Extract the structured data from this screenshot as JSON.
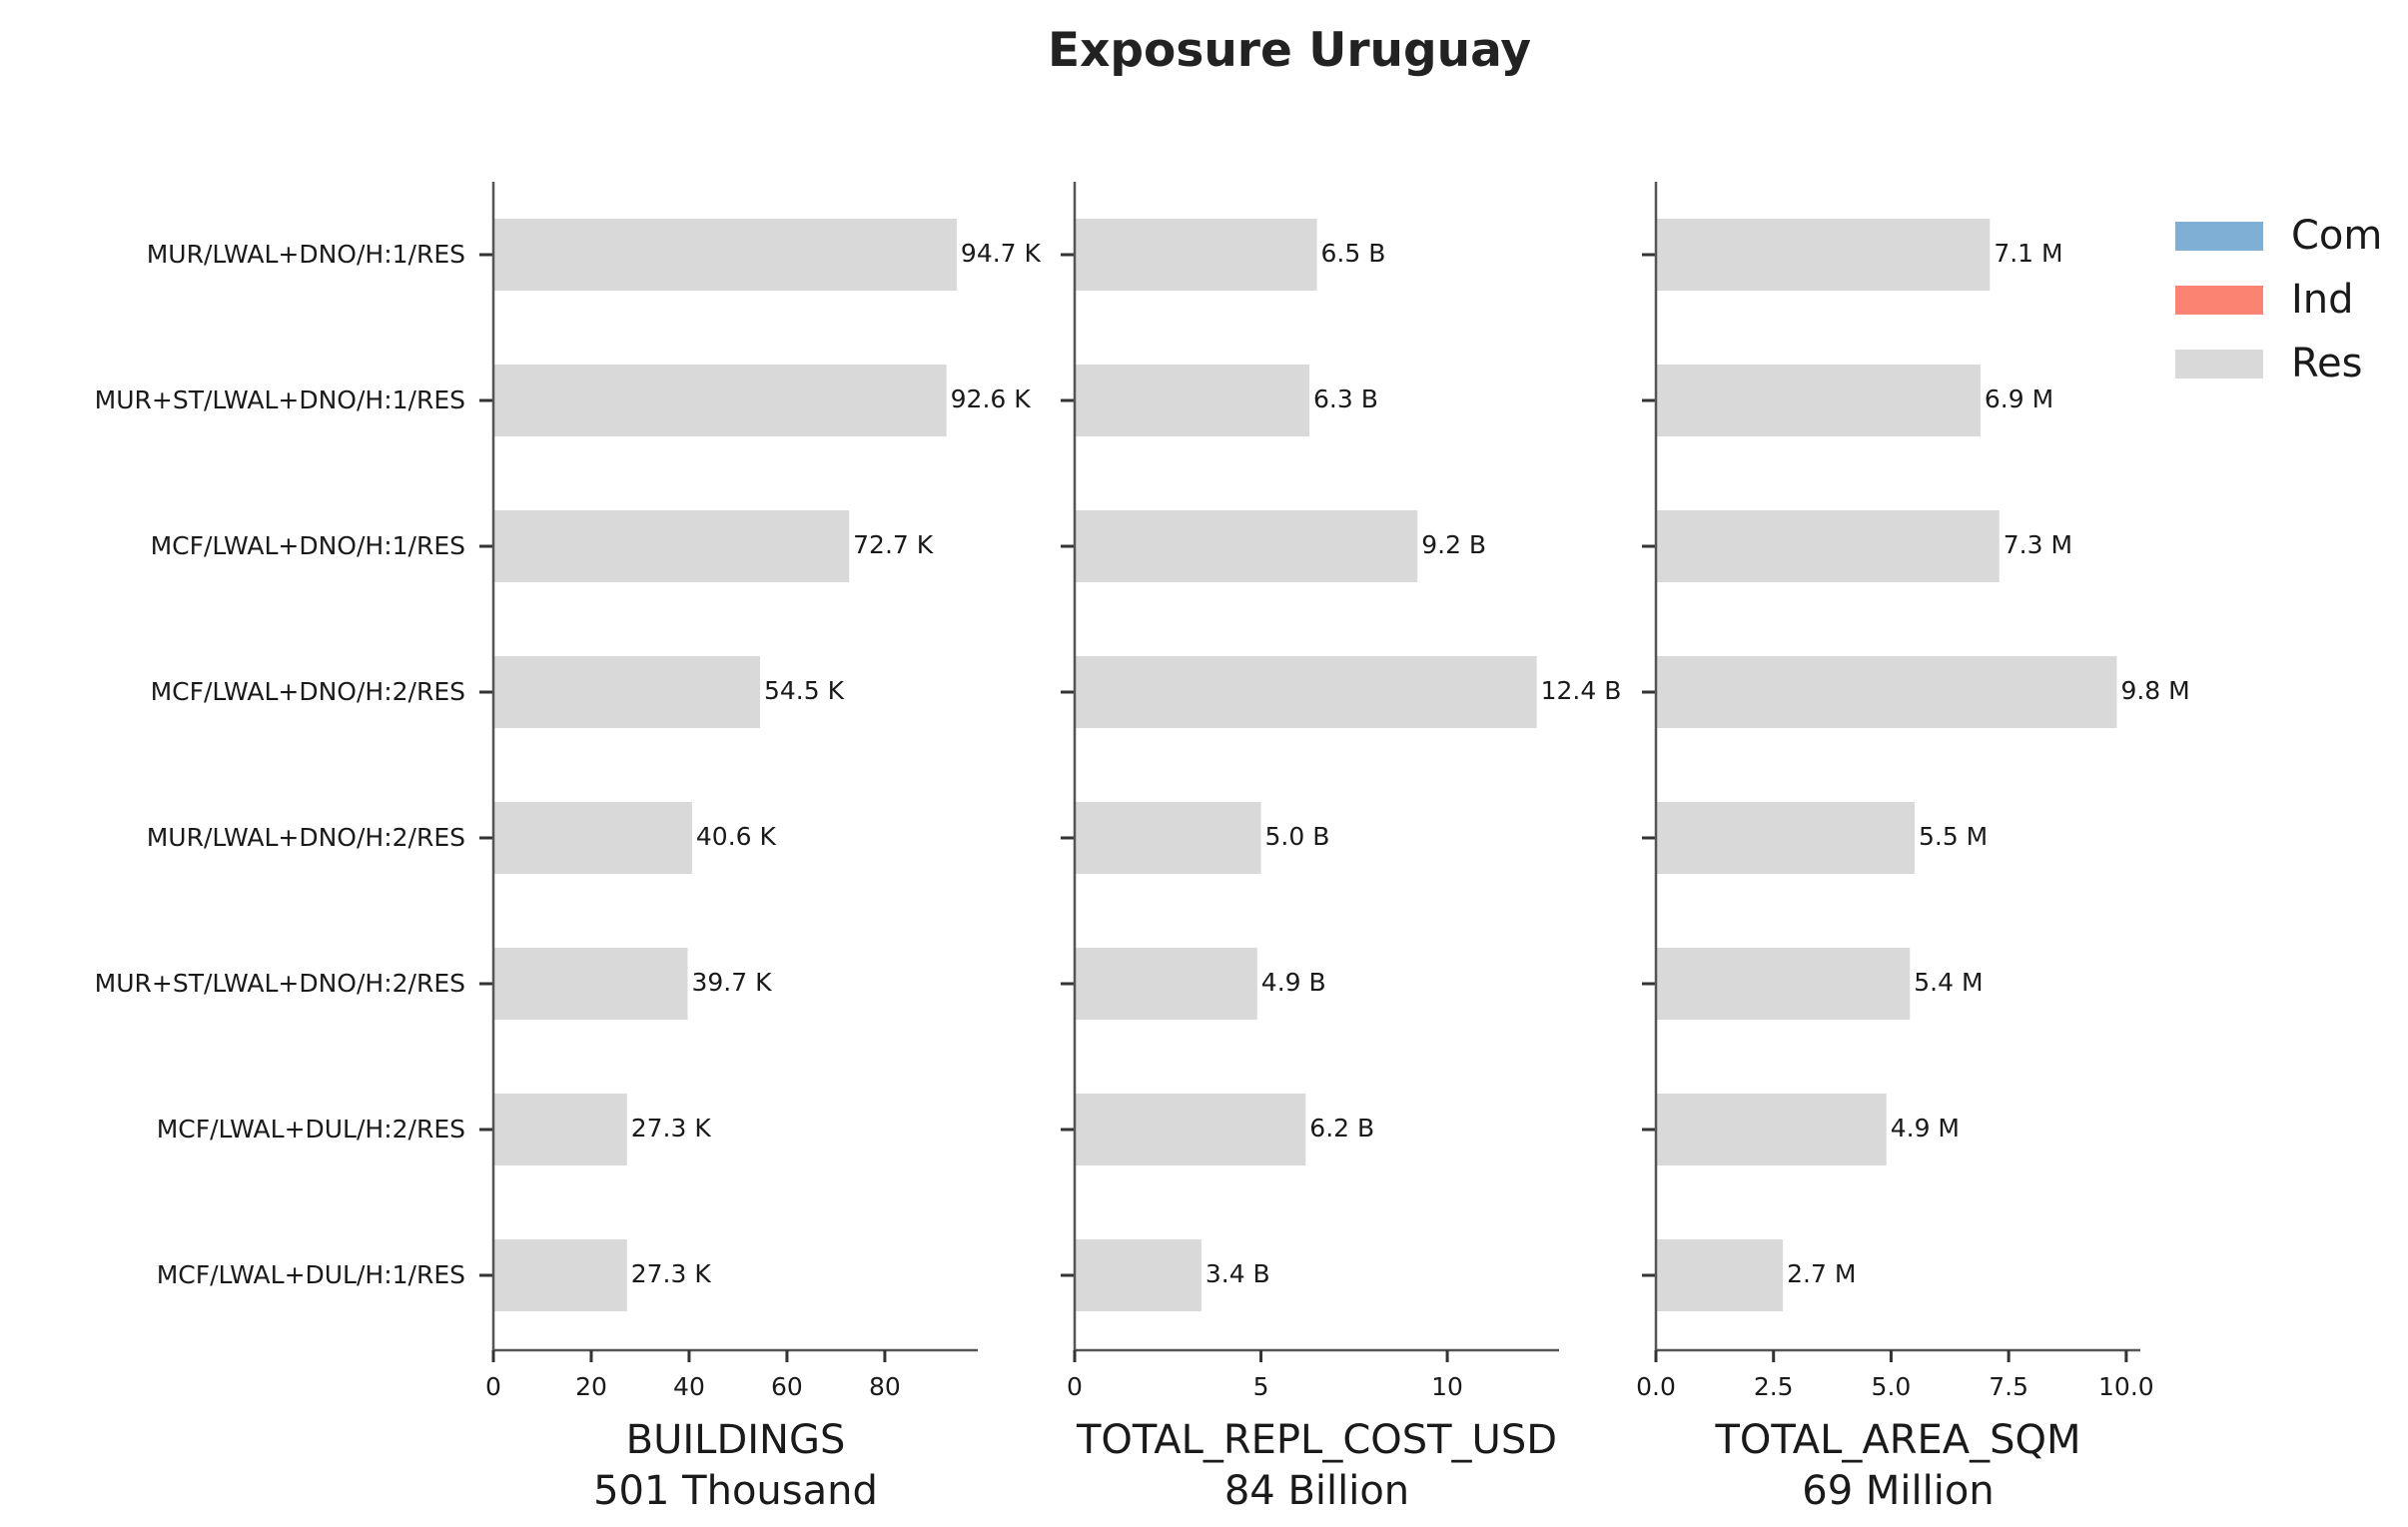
{
  "chart_data": {
    "type": "bar",
    "orientation": "horizontal",
    "title": "Exposure Uruguay",
    "categories": [
      "MUR/LWAL+DNO/H:1/RES",
      "MUR+ST/LWAL+DNO/H:1/RES",
      "MCF/LWAL+DNO/H:1/RES",
      "MCF/LWAL+DNO/H:2/RES",
      "MUR/LWAL+DNO/H:2/RES",
      "MUR+ST/LWAL+DNO/H:2/RES",
      "MCF/LWAL+DUL/H:2/RES",
      "MCF/LWAL+DUL/H:1/RES"
    ],
    "panels": [
      {
        "xlabel": "BUILDINGS",
        "total_label": "501 Thousand",
        "xlim": [
          0,
          99
        ],
        "ticks": [
          0,
          20,
          40,
          60,
          80
        ],
        "tick_labels": [
          "0",
          "20",
          "40",
          "60",
          "80"
        ],
        "values": [
          94.7,
          92.6,
          72.7,
          54.5,
          40.6,
          39.7,
          27.3,
          27.3
        ],
        "value_labels": [
          "94.7 K",
          "92.6 K",
          "72.7 K",
          "54.5 K",
          "40.6 K",
          "39.7 K",
          "27.3 K",
          "27.3 K"
        ]
      },
      {
        "xlabel": "TOTAL_REPL_COST_USD",
        "total_label": "84 Billion",
        "xlim": [
          0,
          13.0
        ],
        "ticks": [
          0,
          5,
          10
        ],
        "tick_labels": [
          "0",
          "5",
          "10"
        ],
        "values": [
          6.5,
          6.3,
          9.2,
          12.4,
          5.0,
          4.9,
          6.2,
          3.4
        ],
        "value_labels": [
          "6.5 B",
          "6.3 B",
          "9.2 B",
          "12.4 B",
          "5.0 B",
          "4.9 B",
          "6.2 B",
          "3.4 B"
        ]
      },
      {
        "xlabel": "TOTAL_AREA_SQM",
        "total_label": "69 Million",
        "xlim": [
          0,
          10.3
        ],
        "ticks": [
          0,
          2.5,
          5,
          7.5,
          10
        ],
        "tick_labels": [
          "0.0",
          "2.5",
          "5.0",
          "7.5",
          "10.0"
        ],
        "values": [
          7.1,
          6.9,
          7.3,
          9.8,
          5.5,
          5.4,
          4.9,
          2.7
        ],
        "value_labels": [
          "7.1 M",
          "6.9 M",
          "7.3 M",
          "9.8 M",
          "5.5 M",
          "5.4 M",
          "4.9 M",
          "2.7 M"
        ]
      }
    ],
    "legend": {
      "position": "top-right",
      "items": [
        {
          "label": "Com",
          "color": "#7fafd4"
        },
        {
          "label": "Ind",
          "color": "#fa8371"
        },
        {
          "label": "Res",
          "color": "#d9d9d9"
        }
      ]
    },
    "bar_color": "#d9d9d9",
    "grid": false
  }
}
